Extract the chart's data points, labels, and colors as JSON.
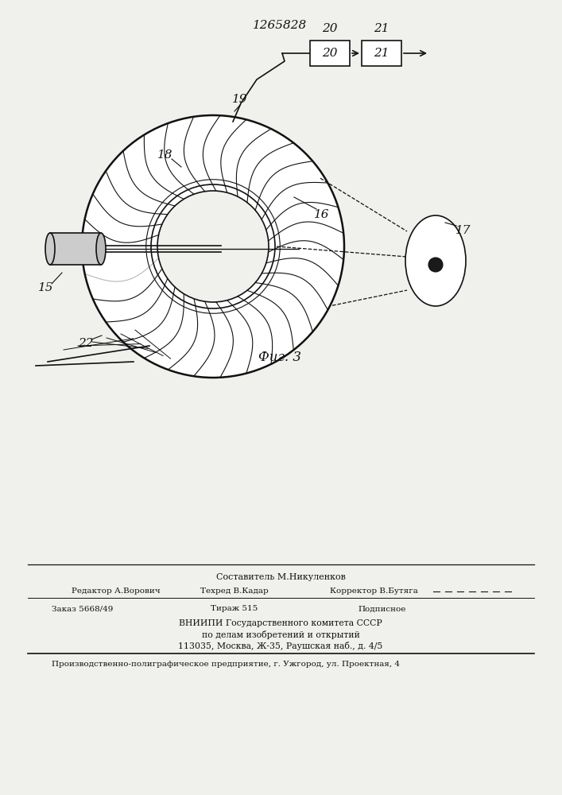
{
  "patent_number": "1265828",
  "fig_label": "Фиг. 3",
  "bg_color": "#f0f0ec",
  "line_color": "#111111",
  "footer_composer": "Составитель М.Никуленков",
  "footer_line1_left": "Редактор А.Ворович",
  "footer_line1_mid": "Техред В.Кадар",
  "footer_line1_right": "Корректор В.Бутяга",
  "footer_line2_left": "Заказ 5668/49",
  "footer_line2_mid": "Тираж 515",
  "footer_line2_right": "Подписное",
  "footer_line3": "ВНИИПИ Государственного комитета СССР",
  "footer_line4": "по делам изобретений и открытий",
  "footer_line5": "113035, Москва, Ж-35, Раушская наб., д. 4/5",
  "footer_bottom": "Производственно-полиграфическое предприятие, г. Ужгород, ул. Проектная, 4"
}
